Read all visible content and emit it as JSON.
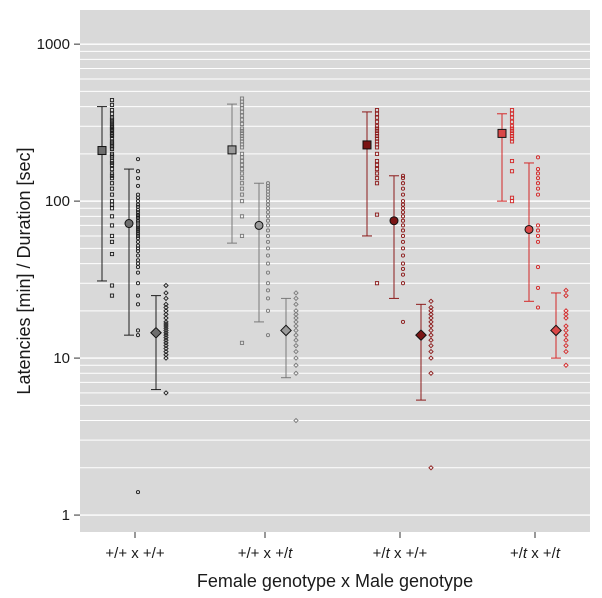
{
  "chart_data": {
    "type": "scatter",
    "xlabel": "Female genotype x Male genotype",
    "ylabel": "Latencies [min] / Duration [sec]",
    "y_scale": "log",
    "ylim": [
      0.78,
      1650
    ],
    "y_ticks": [
      {
        "value": 1,
        "label": "1"
      },
      {
        "value": 10,
        "label": "10"
      },
      {
        "value": 100,
        "label": "100"
      },
      {
        "value": 1000,
        "label": "1000"
      }
    ],
    "grid": true,
    "panel_background": "#d9d9d9",
    "categories": [
      {
        "label": "+/+ x +/+",
        "parts": [
          {
            "t": "+/+ x +/+",
            "i": false
          }
        ]
      },
      {
        "label": "+/+ x +/t",
        "parts": [
          {
            "t": "+/+ x +/",
            "i": false
          },
          {
            "t": "t",
            "i": true
          }
        ]
      },
      {
        "label": "+/t x +/+",
        "parts": [
          {
            "t": "+/",
            "i": false
          },
          {
            "t": "t",
            "i": true
          },
          {
            "t": " x +/+",
            "i": false
          }
        ]
      },
      {
        "label": "+/t x +/t",
        "parts": [
          {
            "t": "+/",
            "i": false
          },
          {
            "t": "t",
            "i": true
          },
          {
            "t": " x +/",
            "i": false
          },
          {
            "t": "t",
            "i": true
          }
        ]
      }
    ],
    "series_kinds": [
      "square",
      "circle",
      "diamond"
    ],
    "groups": [
      {
        "category": "+/+ x +/+",
        "color": "#1e1e1e",
        "fill": "#6e6e6e",
        "series": [
          {
            "shape": "square",
            "mean": 210,
            "err": [
              31,
              400
            ],
            "points": [
              440,
              410,
              380,
              360,
              340,
              330,
              320,
              310,
              300,
              295,
              290,
              285,
              280,
              270,
              265,
              260,
              250,
              240,
              235,
              230,
              225,
              220,
              215,
              200,
              195,
              190,
              180,
              175,
              170,
              160,
              150,
              145,
              140,
              130,
              120,
              110,
              100,
              95,
              90,
              80,
              70,
              60,
              55,
              46,
              29,
              25
            ]
          },
          {
            "shape": "circle",
            "mean": 72,
            "err": [
              14,
              160
            ],
            "points": [
              185,
              155,
              140,
              125,
              110,
              105,
              100,
              95,
              92,
              88,
              85,
              82,
              80,
              78,
              75,
              73,
              70,
              68,
              66,
              64,
              62,
              60,
              58,
              55,
              52,
              50,
              48,
              45,
              42,
              40,
              38,
              35,
              30,
              25,
              22,
              15,
              14,
              1.4
            ]
          },
          {
            "shape": "diamond",
            "mean": 14.5,
            "err": [
              6.3,
              25
            ],
            "points": [
              29,
              26,
              24,
              22,
              21,
              20,
              19,
              18,
              17,
              16.5,
              16,
              15.5,
              15,
              14.5,
              14,
              13.5,
              13,
              12.5,
              12,
              11.5,
              11,
              10.5,
              10,
              6
            ]
          }
        ]
      },
      {
        "category": "+/+ x +/t",
        "color": "#7a7a7a",
        "fill": "#9a9a9a",
        "series": [
          {
            "shape": "square",
            "mean": 212,
            "err": [
              54,
              415
            ],
            "points": [
              450,
              430,
              410,
              390,
              370,
              350,
              330,
              310,
              290,
              280,
              270,
              260,
              250,
              240,
              230,
              220,
              200,
              190,
              180,
              170,
              160,
              150,
              140,
              130,
              120,
              110,
              100,
              80,
              60,
              12.5
            ]
          },
          {
            "shape": "circle",
            "mean": 70,
            "err": [
              17,
              130
            ],
            "points": [
              130,
              125,
              120,
              115,
              110,
              105,
              100,
              95,
              90,
              85,
              80,
              75,
              70,
              65,
              60,
              55,
              50,
              45,
              40,
              35,
              30,
              27,
              24,
              20,
              14
            ]
          },
          {
            "shape": "diamond",
            "mean": 15,
            "err": [
              7.5,
              24
            ],
            "points": [
              26,
              24,
              22,
              20,
              19,
              18,
              17,
              16,
              15,
              14,
              13,
              12,
              11,
              10,
              9,
              8,
              4
            ]
          }
        ]
      },
      {
        "category": "+/t x +/+",
        "color": "#8c1a1a",
        "fill": "#7a1515",
        "series": [
          {
            "shape": "square",
            "mean": 228,
            "err": [
              60,
              370
            ],
            "points": [
              380,
              360,
              340,
              320,
              300,
              290,
              280,
              270,
              260,
              250,
              240,
              230,
              220,
              200,
              180,
              170,
              160,
              150,
              140,
              130,
              82,
              30
            ]
          },
          {
            "shape": "circle",
            "mean": 75,
            "err": [
              24,
              145
            ],
            "points": [
              145,
              140,
              130,
              120,
              110,
              100,
              95,
              90,
              85,
              80,
              75,
              70,
              65,
              60,
              55,
              50,
              45,
              40,
              37,
              34,
              30,
              17
            ]
          },
          {
            "shape": "diamond",
            "mean": 14,
            "err": [
              5.4,
              22
            ],
            "points": [
              23,
              21,
              20,
              19,
              18,
              17,
              16,
              15,
              14,
              13,
              12,
              11,
              10,
              8,
              2
            ]
          }
        ]
      },
      {
        "category": "+/t x +/t",
        "color": "#d42828",
        "fill": "#d94848",
        "series": [
          {
            "shape": "square",
            "mean": 270,
            "err": [
              100,
              360
            ],
            "points": [
              380,
              360,
              340,
              320,
              300,
              290,
              280,
              270,
              260,
              250,
              240,
              180,
              155,
              105,
              100
            ]
          },
          {
            "shape": "circle",
            "mean": 66,
            "err": [
              23,
              175
            ],
            "points": [
              190,
              160,
              150,
              140,
              130,
              120,
              110,
              70,
              65,
              60,
              55,
              38,
              28,
              21
            ]
          },
          {
            "shape": "diamond",
            "mean": 15,
            "err": [
              10,
              26
            ],
            "points": [
              27,
              25,
              20,
              19,
              18,
              16,
              15,
              14,
              13,
              12,
              11,
              9
            ]
          }
        ]
      }
    ]
  }
}
